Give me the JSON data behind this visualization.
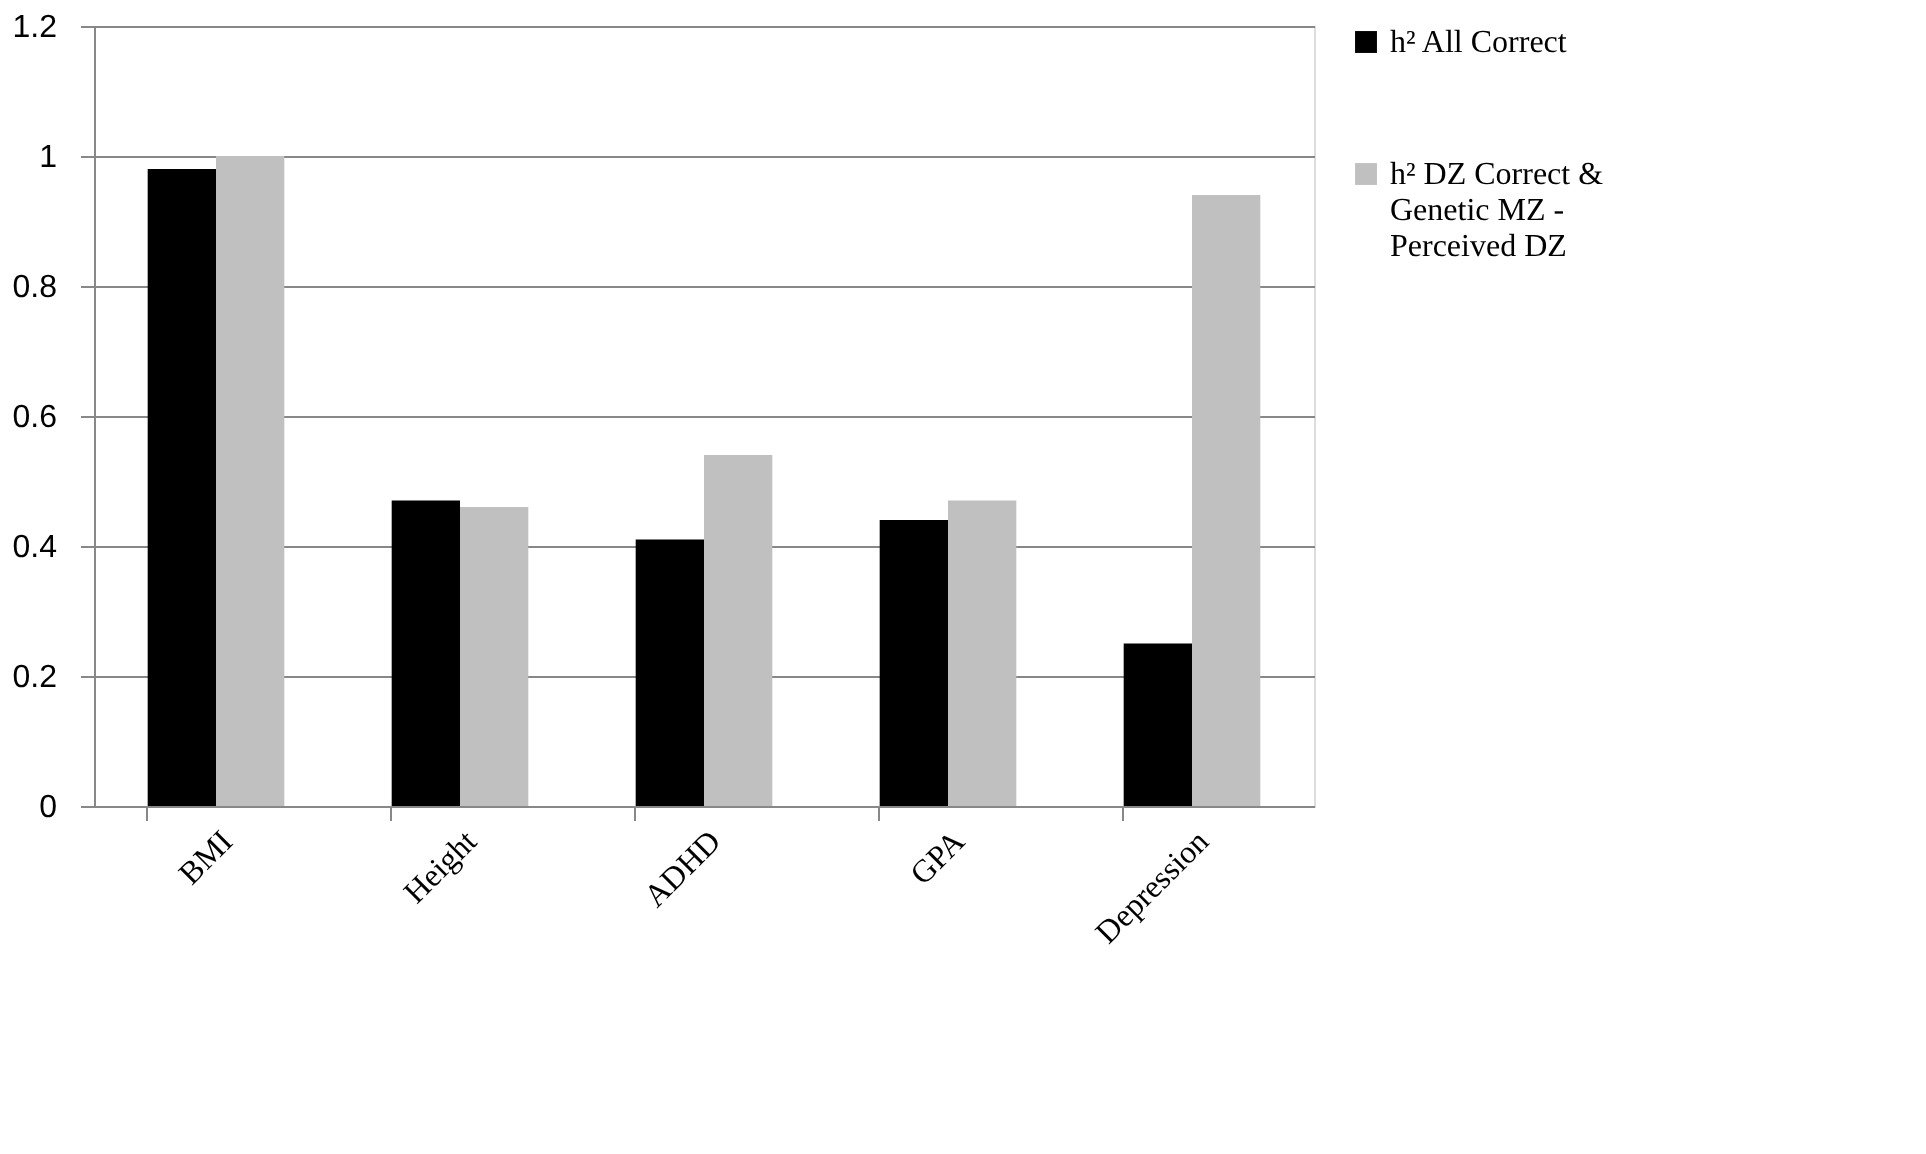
{
  "chart_data": {
    "type": "bar",
    "categories": [
      "BMI",
      "Height",
      "ADHD",
      "GPA",
      "Depression"
    ],
    "series": [
      {
        "name": "h² All Correct",
        "color": "#000000",
        "values": [
          0.98,
          0.47,
          0.41,
          0.44,
          0.25
        ]
      },
      {
        "name": "h² DZ Correct & Genetic MZ - Perceived DZ",
        "color": "#c0c0c0",
        "values": [
          1.0,
          0.46,
          0.54,
          0.47,
          0.94
        ]
      }
    ],
    "ylim": [
      0,
      1.2
    ],
    "yticks": [
      0,
      0.2,
      0.4,
      0.6,
      0.8,
      1,
      1.2
    ],
    "grid": "y",
    "legend": "right"
  }
}
